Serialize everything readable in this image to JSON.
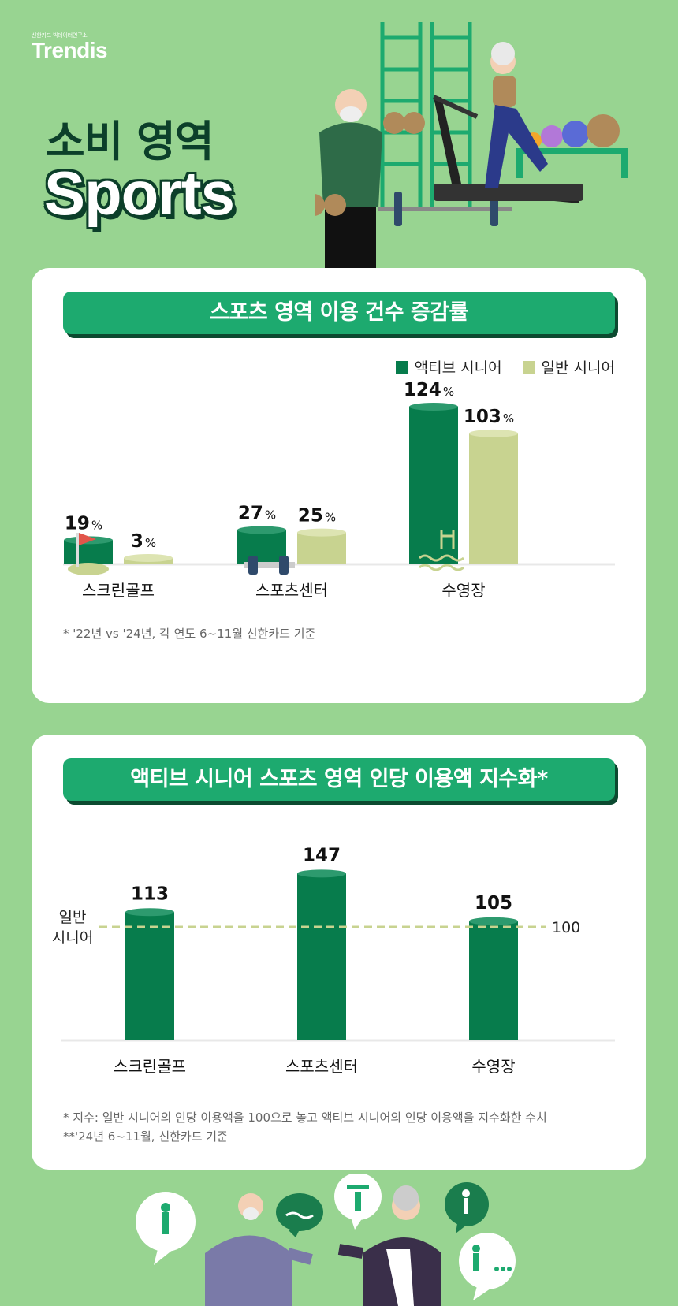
{
  "brand": {
    "small": "신한카드 빅데이터연구소",
    "name": "Trendis"
  },
  "hero": {
    "title_ko": "소비 영역",
    "title_en": "Sports"
  },
  "colors": {
    "active": "#077c4c",
    "active_top": "#2d9a6e",
    "general": "#c8d390",
    "general_top": "#dde4b2",
    "banner": "#1daa6f",
    "dash": "#c8d390"
  },
  "card1": {
    "banner": "스포츠 영역 이용 건수 증감률",
    "legend": {
      "active": "액티브 시니어",
      "general": "일반 시니어"
    },
    "footnote": "* '22년 vs '24년, 각 연도 6~11월 신한카드 기준"
  },
  "card2": {
    "banner": "액티브 시니어 스포츠 영역 인당 이용액 지수화*",
    "ref_label_line1": "일반",
    "ref_label_line2": "시니어",
    "footnote1": "* 지수: 일반 시니어의 인당 이용액을 100으로 놓고 액티브 시니어의 인당 이용액을 지수화한 수치",
    "footnote2": "**'24년 6~11월, 신한카드 기준"
  },
  "chart_data": [
    {
      "type": "bar",
      "title": "스포츠 영역 이용 건수 증감률",
      "categories": [
        "스크린골프",
        "스포츠센터",
        "수영장"
      ],
      "series": [
        {
          "name": "액티브 시니어",
          "values": [
            19,
            27,
            124
          ]
        },
        {
          "name": "일반 시니어",
          "values": [
            3,
            25,
            103
          ]
        }
      ],
      "unit": "%",
      "ylim": [
        0,
        124
      ]
    },
    {
      "type": "bar",
      "title": "액티브 시니어 스포츠 영역 인당 이용액 지수화*",
      "categories": [
        "스크린골프",
        "스포츠센터",
        "수영장"
      ],
      "values": [
        113,
        147,
        105
      ],
      "reference": {
        "label": "일반 시니어",
        "value": 100
      },
      "ylim": [
        0,
        147
      ]
    }
  ]
}
